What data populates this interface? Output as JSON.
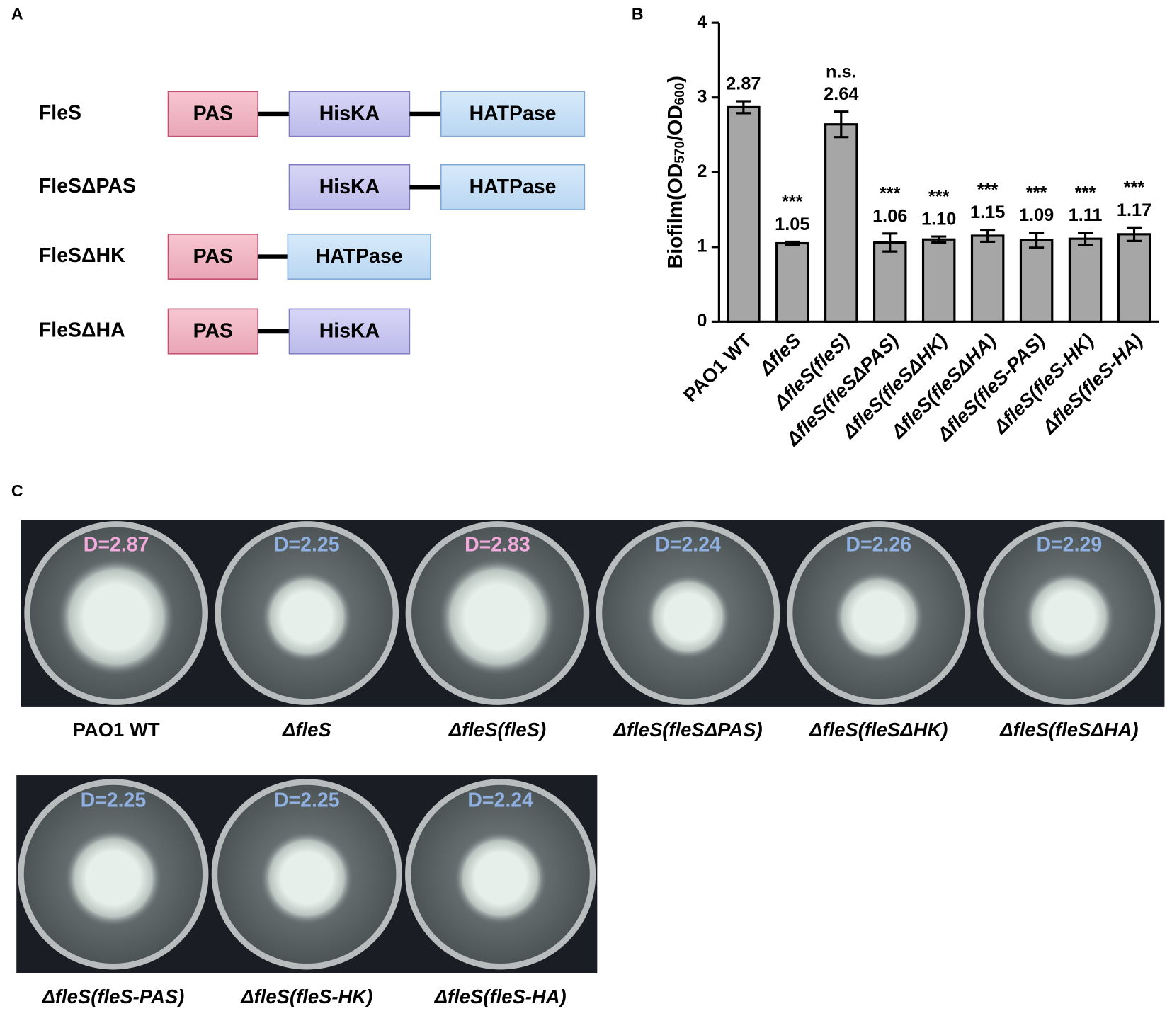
{
  "panel_labels": [
    "A",
    "B",
    "C"
  ],
  "domains": [
    {
      "name": "FleS",
      "parts": [
        "PAS",
        "HisKA",
        "HATPase"
      ]
    },
    {
      "name": "FleSΔPAS",
      "parts": [
        "HisKA",
        "HATPase"
      ]
    },
    {
      "name": "FleSΔHK",
      "parts": [
        "PAS",
        "HATPase"
      ]
    },
    {
      "name": "FleSΔHA",
      "parts": [
        "PAS",
        "HisKA"
      ]
    }
  ],
  "chart_data": {
    "type": "bar",
    "ylabel_parts": [
      "Biofilm(OD",
      "570",
      "/OD",
      "600",
      ")"
    ],
    "categories": [
      "PAO1 WT",
      "ΔfleS",
      "ΔfleS(fleS)",
      "ΔfleS(fleSΔPAS)",
      "ΔfleS(fleSΔHK)",
      "ΔfleS(fleSΔHA)",
      "ΔfleS(fleS-PAS)",
      "ΔfleS(fleS-HK)",
      "ΔfleS(fleS-HA)"
    ],
    "values": [
      2.87,
      1.05,
      2.64,
      1.06,
      1.1,
      1.15,
      1.09,
      1.11,
      1.17
    ],
    "value_labels": [
      "2.87",
      "1.05",
      "2.64",
      "1.06",
      "1.10",
      "1.15",
      "1.09",
      "1.11",
      "1.17"
    ],
    "errors": [
      0.08,
      0.02,
      0.17,
      0.12,
      0.04,
      0.08,
      0.1,
      0.08,
      0.09
    ],
    "significance": [
      null,
      "***",
      "n.s.",
      "***",
      "***",
      "***",
      "***",
      "***",
      "***"
    ],
    "color": "#a6a6a6",
    "ylim": [
      0,
      4
    ],
    "yticks": [
      0,
      1,
      2,
      3,
      4
    ]
  },
  "plates": [
    {
      "label": "PAO1 WT",
      "d_label": "D=2.87",
      "color": "#f2a9dc"
    },
    {
      "label": "ΔfleS",
      "d_label": "D=2.25",
      "color": "#8fb0e0"
    },
    {
      "label": "ΔfleS(fleS)",
      "d_label": "D=2.83",
      "color": "#f2a9dc"
    },
    {
      "label": "ΔfleS(fleSΔPAS)",
      "d_label": "D=2.24",
      "color": "#8fb0e0"
    },
    {
      "label": "ΔfleS(fleSΔHK)",
      "d_label": "D=2.26",
      "color": "#8fb0e0"
    },
    {
      "label": "ΔfleS(fleSΔHA)",
      "d_label": "D=2.29",
      "color": "#8fb0e0"
    },
    {
      "label": "ΔfleS(fleS-PAS)",
      "d_label": "D=2.25",
      "color": "#8fb0e0"
    },
    {
      "label": "ΔfleS(fleS-HK)",
      "d_label": "D=2.25",
      "color": "#8fb0e0"
    },
    {
      "label": "ΔfleS(fleS-HA)",
      "d_label": "D=2.24",
      "color": "#8fb0e0"
    }
  ]
}
